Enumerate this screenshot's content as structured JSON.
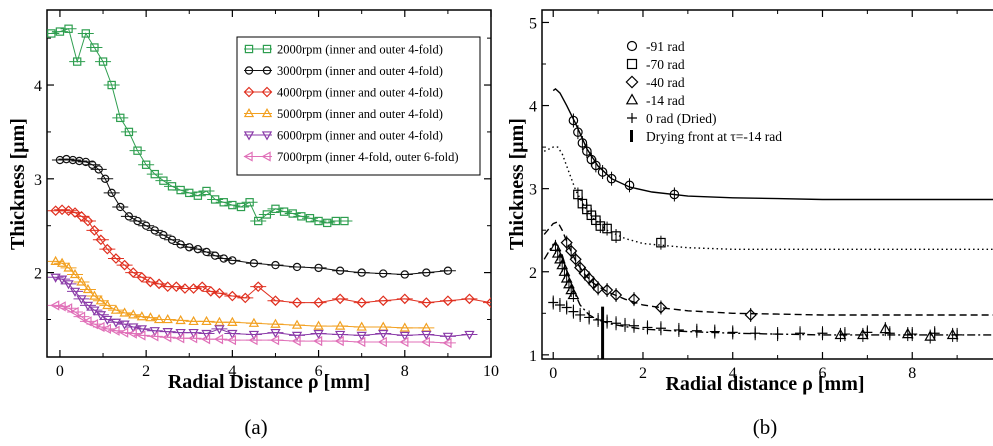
{
  "chart_data": [
    {
      "type": "line",
      "panel_label": "(a)",
      "xlabel": "Radial Distance ρ [mm]",
      "ylabel": "Thickness [μm]",
      "xlim": [
        -0.3,
        10
      ],
      "ylim": [
        1.1,
        4.8
      ],
      "xticks": [
        "0",
        "2",
        "4",
        "6",
        "8",
        "10"
      ],
      "yticks": [
        "2",
        "3",
        "4"
      ],
      "legend_position": "top-right",
      "series": [
        {
          "name": "2000rpm (inner and outer 4-fold)",
          "color": "#2e9e4f",
          "marker": "square",
          "x": [
            -0.2,
            0.0,
            0.2,
            0.4,
            0.6,
            0.8,
            1.0,
            1.2,
            1.4,
            1.6,
            1.8,
            2.0,
            2.2,
            2.4,
            2.6,
            2.8,
            3.0,
            3.2,
            3.4,
            3.6,
            3.8,
            4.0,
            4.2,
            4.4,
            4.6,
            4.8,
            5.0,
            5.2,
            5.4,
            5.6,
            5.8,
            6.0,
            6.2,
            6.4,
            6.6
          ],
          "y": [
            4.55,
            4.57,
            4.6,
            4.25,
            4.55,
            4.4,
            4.25,
            4.0,
            3.65,
            3.5,
            3.3,
            3.15,
            3.05,
            2.98,
            2.92,
            2.88,
            2.85,
            2.82,
            2.87,
            2.78,
            2.75,
            2.72,
            2.7,
            2.75,
            2.55,
            2.62,
            2.68,
            2.65,
            2.63,
            2.6,
            2.58,
            2.55,
            2.53,
            2.55,
            2.55
          ]
        },
        {
          "name": "3000rpm (inner and outer 4-fold)",
          "color": "#111111",
          "marker": "circle",
          "x": [
            0.0,
            0.15,
            0.3,
            0.45,
            0.6,
            0.75,
            0.9,
            1.05,
            1.2,
            1.4,
            1.6,
            1.8,
            2.0,
            2.2,
            2.4,
            2.6,
            2.8,
            3.0,
            3.2,
            3.4,
            3.6,
            3.8,
            4.0,
            4.5,
            5.0,
            5.5,
            6.0,
            6.5,
            7.0,
            7.5,
            8.0,
            8.5,
            9.0
          ],
          "y": [
            3.2,
            3.21,
            3.2,
            3.19,
            3.18,
            3.15,
            3.1,
            3.0,
            2.85,
            2.7,
            2.6,
            2.55,
            2.5,
            2.45,
            2.4,
            2.35,
            2.3,
            2.27,
            2.25,
            2.22,
            2.18,
            2.15,
            2.13,
            2.1,
            2.08,
            2.06,
            2.05,
            2.02,
            2.0,
            1.99,
            1.98,
            2.0,
            2.02
          ]
        },
        {
          "name": "4000rpm (inner and outer 4-fold)",
          "color": "#e03020",
          "marker": "diamond",
          "x": [
            -0.1,
            0.05,
            0.2,
            0.35,
            0.5,
            0.65,
            0.8,
            0.95,
            1.1,
            1.3,
            1.5,
            1.7,
            1.9,
            2.1,
            2.3,
            2.5,
            2.7,
            2.9,
            3.1,
            3.3,
            3.5,
            3.7,
            4.0,
            4.3,
            4.6,
            5.0,
            5.5,
            6.0,
            6.5,
            7.0,
            7.5,
            8.0,
            8.5,
            9.0,
            9.5,
            10.0
          ],
          "y": [
            2.66,
            2.67,
            2.66,
            2.64,
            2.6,
            2.55,
            2.45,
            2.35,
            2.25,
            2.15,
            2.08,
            2.0,
            1.95,
            1.9,
            1.88,
            1.85,
            1.85,
            1.83,
            1.83,
            1.85,
            1.8,
            1.78,
            1.75,
            1.73,
            1.85,
            1.7,
            1.68,
            1.68,
            1.72,
            1.68,
            1.7,
            1.72,
            1.68,
            1.7,
            1.72,
            1.68
          ]
        },
        {
          "name": "5000rpm (inner and outer 4-fold)",
          "color": "#f2a020",
          "marker": "triangle-up",
          "x": [
            -0.1,
            0.05,
            0.2,
            0.35,
            0.5,
            0.65,
            0.8,
            0.95,
            1.1,
            1.3,
            1.5,
            1.7,
            1.9,
            2.1,
            2.3,
            2.5,
            2.8,
            3.1,
            3.4,
            3.7,
            4.0,
            4.5,
            5.0,
            5.5,
            6.0,
            6.5,
            7.0,
            7.5,
            8.0,
            8.5
          ],
          "y": [
            2.12,
            2.1,
            2.05,
            1.98,
            1.9,
            1.82,
            1.75,
            1.7,
            1.65,
            1.6,
            1.57,
            1.55,
            1.53,
            1.52,
            1.5,
            1.5,
            1.49,
            1.48,
            1.48,
            1.47,
            1.47,
            1.46,
            1.45,
            1.44,
            1.43,
            1.43,
            1.42,
            1.42,
            1.41,
            1.41
          ]
        },
        {
          "name": "6000rpm (inner and outer 4-fold)",
          "color": "#8a3aa8",
          "marker": "triangle-down",
          "x": [
            -0.1,
            0.05,
            0.2,
            0.35,
            0.5,
            0.65,
            0.8,
            0.95,
            1.1,
            1.3,
            1.5,
            1.7,
            1.9,
            2.2,
            2.5,
            2.8,
            3.1,
            3.4,
            3.7,
            4.0,
            4.5,
            5.0,
            5.5,
            6.0,
            6.5,
            7.0,
            7.5,
            8.0,
            8.5,
            9.0,
            9.5
          ],
          "y": [
            1.95,
            1.93,
            1.88,
            1.8,
            1.72,
            1.65,
            1.6,
            1.55,
            1.5,
            1.47,
            1.45,
            1.42,
            1.4,
            1.38,
            1.37,
            1.36,
            1.36,
            1.35,
            1.4,
            1.35,
            1.34,
            1.36,
            1.33,
            1.35,
            1.34,
            1.33,
            1.35,
            1.33,
            1.34,
            1.32,
            1.34
          ]
        },
        {
          "name": "7000rpm (inner 4-fold, outer 6-fold)",
          "color": "#e070b8",
          "marker": "triangle-left",
          "x": [
            -0.1,
            0.05,
            0.2,
            0.35,
            0.5,
            0.65,
            0.8,
            0.95,
            1.1,
            1.3,
            1.5,
            1.7,
            1.9,
            2.2,
            2.5,
            2.8,
            3.1,
            3.4,
            3.7,
            4.0,
            4.5,
            5.0,
            5.5,
            6.0,
            6.5,
            7.0,
            7.5,
            8.0,
            8.5,
            9.0
          ],
          "y": [
            1.65,
            1.64,
            1.62,
            1.58,
            1.53,
            1.48,
            1.45,
            1.42,
            1.4,
            1.38,
            1.36,
            1.35,
            1.33,
            1.32,
            1.31,
            1.3,
            1.3,
            1.29,
            1.29,
            1.28,
            1.28,
            1.28,
            1.27,
            1.27,
            1.27,
            1.26,
            1.26,
            1.26,
            1.26,
            1.25
          ]
        }
      ]
    },
    {
      "type": "line",
      "panel_label": "(b)",
      "xlabel": "Radial distance ρ [mm]",
      "ylabel": "Thickness [μm]",
      "xlim": [
        -0.25,
        10
      ],
      "ylim": [
        0.95,
        5.15
      ],
      "xticks": [
        "0",
        "2",
        "4",
        "6",
        "8",
        "10"
      ],
      "yticks": [
        "1",
        "2",
        "3",
        "4",
        "5"
      ],
      "legend_position": "top-left",
      "series": [
        {
          "name": "-91 rad",
          "marker": "circle",
          "line": "solid",
          "x": [
            0.45,
            0.55,
            0.65,
            0.75,
            0.85,
            0.95,
            1.1,
            1.3,
            1.7,
            2.7
          ],
          "y": [
            3.82,
            3.68,
            3.55,
            3.45,
            3.35,
            3.28,
            3.2,
            3.12,
            3.04,
            2.93
          ],
          "fit_x": [
            0.0,
            0.05,
            0.15,
            0.3,
            0.5,
            0.75,
            1.0,
            1.3,
            1.7,
            2.2,
            3.0,
            4.0,
            5.0,
            6.0,
            7.0,
            8.0,
            9.0,
            10.0
          ],
          "fit_y": [
            4.18,
            4.2,
            4.15,
            4.0,
            3.78,
            3.48,
            3.27,
            3.12,
            3.02,
            2.96,
            2.91,
            2.89,
            2.88,
            2.87,
            2.87,
            2.87,
            2.87,
            2.87
          ]
        },
        {
          "name": "-70 rad",
          "marker": "square",
          "line": "dotted",
          "x": [
            0.55,
            0.65,
            0.75,
            0.85,
            0.95,
            1.05,
            1.2,
            1.4,
            2.4
          ],
          "y": [
            2.93,
            2.82,
            2.75,
            2.68,
            2.62,
            2.55,
            2.52,
            2.43,
            2.35
          ],
          "fit_x": [
            -0.2,
            0.0,
            0.1,
            0.2,
            0.35,
            0.5,
            0.7,
            0.9,
            1.2,
            1.6,
            2.0,
            3.0,
            4.0,
            5.0,
            6.0,
            8.0,
            10.0
          ],
          "fit_y": [
            3.45,
            3.5,
            3.5,
            3.42,
            3.2,
            2.98,
            2.78,
            2.64,
            2.5,
            2.4,
            2.34,
            2.29,
            2.27,
            2.27,
            2.27,
            2.27,
            2.27
          ]
        },
        {
          "name": "-40 rad",
          "marker": "diamond",
          "line": "dashed",
          "x": [
            0.3,
            0.4,
            0.5,
            0.6,
            0.7,
            0.8,
            0.9,
            1.0,
            1.2,
            1.4,
            1.8,
            2.4,
            4.4
          ],
          "y": [
            2.35,
            2.25,
            2.15,
            2.05,
            1.98,
            1.92,
            1.86,
            1.8,
            1.78,
            1.72,
            1.67,
            1.57,
            1.48
          ],
          "fit_x": [
            -0.2,
            0.0,
            0.1,
            0.2,
            0.35,
            0.5,
            0.7,
            0.9,
            1.2,
            1.6,
            2.0,
            2.5,
            3.0,
            4.0,
            5.0,
            6.0,
            8.0,
            10.0
          ],
          "fit_y": [
            2.45,
            2.58,
            2.6,
            2.5,
            2.3,
            2.13,
            1.97,
            1.86,
            1.76,
            1.67,
            1.6,
            1.56,
            1.53,
            1.5,
            1.49,
            1.48,
            1.48,
            1.48
          ]
        },
        {
          "name": "-14 rad",
          "marker": "triangle-up",
          "line": "dash-dot",
          "x": [
            0.05,
            0.1,
            0.15,
            0.2,
            0.25,
            0.3,
            0.35,
            0.4,
            0.45,
            6.4,
            6.9,
            7.4,
            7.9,
            8.4,
            8.9
          ],
          "y": [
            2.3,
            2.22,
            2.15,
            2.08,
            2.0,
            1.92,
            1.85,
            1.78,
            1.72,
            1.24,
            1.24,
            1.31,
            1.25,
            1.22,
            1.24
          ],
          "fit_x": [
            -0.2,
            0.0,
            0.1,
            0.2,
            0.3,
            0.45,
            0.6,
            0.8,
            1.0,
            1.3,
            1.6,
            2.0,
            3.0,
            4.0,
            5.0,
            6.0,
            7.0,
            8.0,
            9.0,
            10.0
          ],
          "fit_y": [
            2.15,
            2.33,
            2.32,
            2.2,
            2.02,
            1.78,
            1.6,
            1.48,
            1.42,
            1.37,
            1.34,
            1.31,
            1.28,
            1.26,
            1.25,
            1.24,
            1.24,
            1.24,
            1.24,
            1.24
          ]
        },
        {
          "name": "0 rad (Dried)",
          "marker": "plus",
          "line": "none",
          "x": [
            0.0,
            0.15,
            0.3,
            0.45,
            0.6,
            0.8,
            1.0,
            1.2,
            1.4,
            1.6,
            1.8,
            2.1,
            2.4,
            2.8,
            3.2,
            3.6,
            4.0,
            4.5,
            5.0,
            5.5,
            6.0,
            6.5,
            7.0,
            7.5,
            8.0,
            8.5,
            9.0
          ],
          "y": [
            1.63,
            1.6,
            1.57,
            1.52,
            1.48,
            1.45,
            1.42,
            1.4,
            1.38,
            1.36,
            1.35,
            1.33,
            1.32,
            1.3,
            1.29,
            1.28,
            1.27,
            1.26,
            1.25,
            1.26,
            1.26,
            1.25,
            1.27,
            1.26,
            1.25,
            1.26,
            1.24
          ]
        },
        {
          "name": "Drying front at τ=-14 rad",
          "marker": "vbar",
          "line": "none",
          "x": [
            1.1
          ],
          "y": [
            1.58
          ]
        }
      ]
    }
  ]
}
